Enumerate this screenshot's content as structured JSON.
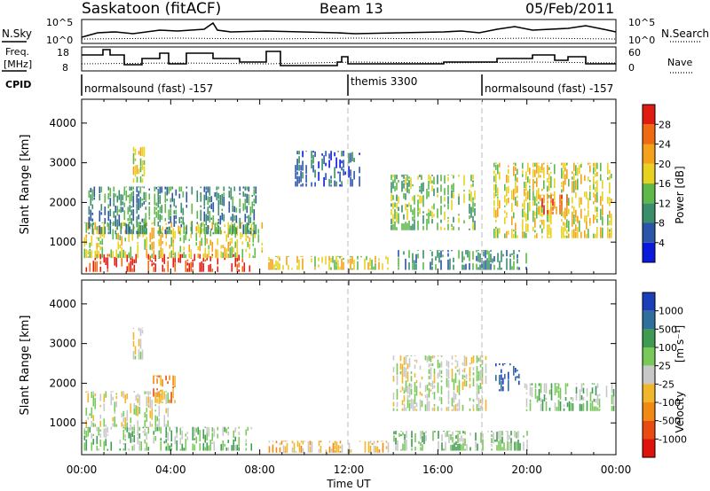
{
  "header": {
    "station": "Saskatoon (fitACF)",
    "beam": "Beam 13",
    "date": "05/Feb/2011"
  },
  "noise_panel": {
    "left_label": "N.Sky",
    "right_label": "N.Search",
    "left_ticks": [
      "10^5",
      "10^0"
    ],
    "right_ticks": [
      "10^5",
      "10^0"
    ]
  },
  "freq_panel": {
    "left_label_line1": "Freq.",
    "left_label_line2": "[MHz]",
    "right_label": "Nave",
    "left_ticks": [
      "18",
      "8"
    ],
    "right_ticks": [
      "60",
      "0"
    ]
  },
  "cpid": {
    "label": "CPID",
    "segments": [
      {
        "start_hour": 0,
        "text": "normalsound (fast) -157"
      },
      {
        "start_hour": 12,
        "text": "themis 3300"
      },
      {
        "start_hour": 18,
        "text": "normalsound (fast) -157"
      }
    ]
  },
  "chart_data": [
    {
      "type": "heatmap",
      "name": "power",
      "ylabel": "Slant Range [km]",
      "xlim": [
        0,
        24
      ],
      "ylim": [
        200,
        4600
      ],
      "yticks": [
        "1000",
        "2000",
        "3000",
        "4000"
      ],
      "colorbar": {
        "label": "Power [dB]",
        "tick_labels": [
          "4",
          "8",
          "12",
          "16",
          "20",
          "24",
          "28"
        ],
        "colors": [
          "#0a1adc",
          "#2a55a8",
          "#3a8f6a",
          "#5fb84a",
          "#e8d21f",
          "#f4a21a",
          "#ef6a12",
          "#e01b12"
        ]
      },
      "bands": [
        {
          "x": [
            0.1,
            7.6
          ],
          "y": [
            250,
            700
          ],
          "level": 7
        },
        {
          "x": [
            0.1,
            8.2
          ],
          "y": [
            600,
            1500
          ],
          "level": 4
        },
        {
          "x": [
            0.3,
            7.8
          ],
          "y": [
            1200,
            2400
          ],
          "level": 2
        },
        {
          "x": [
            2.3,
            2.8
          ],
          "y": [
            2500,
            3400
          ],
          "level": 4
        },
        {
          "x": [
            8.3,
            13.8
          ],
          "y": [
            300,
            650
          ],
          "level": 4
        },
        {
          "x": [
            9.5,
            12.5
          ],
          "y": [
            2400,
            3300
          ],
          "level": 1
        },
        {
          "x": [
            13.8,
            17.9
          ],
          "y": [
            1300,
            2700
          ],
          "level": 3
        },
        {
          "x": [
            14.2,
            20.0
          ],
          "y": [
            300,
            800
          ],
          "level": 2
        },
        {
          "x": [
            18.5,
            23.9
          ],
          "y": [
            1100,
            3000
          ],
          "level": 4
        },
        {
          "x": [
            20.5,
            21.8
          ],
          "y": [
            1700,
            2200
          ],
          "level": 6
        }
      ]
    },
    {
      "type": "heatmap",
      "name": "velocity",
      "ylabel": "Slant Range [km]",
      "xlabel": "Time UT",
      "xlim": [
        0,
        24
      ],
      "ylim": [
        200,
        4600
      ],
      "xticks": [
        "00:00",
        "04:00",
        "08:00",
        "12:00",
        "16:00",
        "20:00",
        "00:00"
      ],
      "yticks": [
        "1000",
        "2000",
        "3000",
        "4000"
      ],
      "colorbar": {
        "label_main": "Velocity",
        "label_unit": "[m s⁻¹]",
        "tick_labels": [
          "1000",
          "500",
          "100",
          "25",
          "-25",
          "-100",
          "-500",
          "-1000"
        ],
        "colors": [
          "#1a3fb8",
          "#2f6f9e",
          "#3f9a52",
          "#78c85a",
          "#c8c8c8",
          "#f2b62a",
          "#f18a12",
          "#e84a12",
          "#e0120e"
        ]
      },
      "bands": [
        {
          "x": [
            0.1,
            7.6
          ],
          "y": [
            300,
            900
          ],
          "level": 3
        },
        {
          "x": [
            0.1,
            4.0
          ],
          "y": [
            900,
            1800
          ],
          "level": 4
        },
        {
          "x": [
            3.2,
            4.2
          ],
          "y": [
            1500,
            2200
          ],
          "level": 6
        },
        {
          "x": [
            2.3,
            2.8
          ],
          "y": [
            2600,
            3400
          ],
          "level": 4
        },
        {
          "x": [
            8.4,
            13.8
          ],
          "y": [
            250,
            550
          ],
          "level": 5
        },
        {
          "x": [
            13.9,
            18.2
          ],
          "y": [
            1300,
            2700
          ],
          "level": 4
        },
        {
          "x": [
            18.5,
            20.0
          ],
          "y": [
            1800,
            2500
          ],
          "level": 0
        },
        {
          "x": [
            19.8,
            23.9
          ],
          "y": [
            1300,
            2000
          ],
          "level": 3
        },
        {
          "x": [
            14.0,
            20.0
          ],
          "y": [
            300,
            800
          ],
          "level": 3
        }
      ]
    }
  ]
}
